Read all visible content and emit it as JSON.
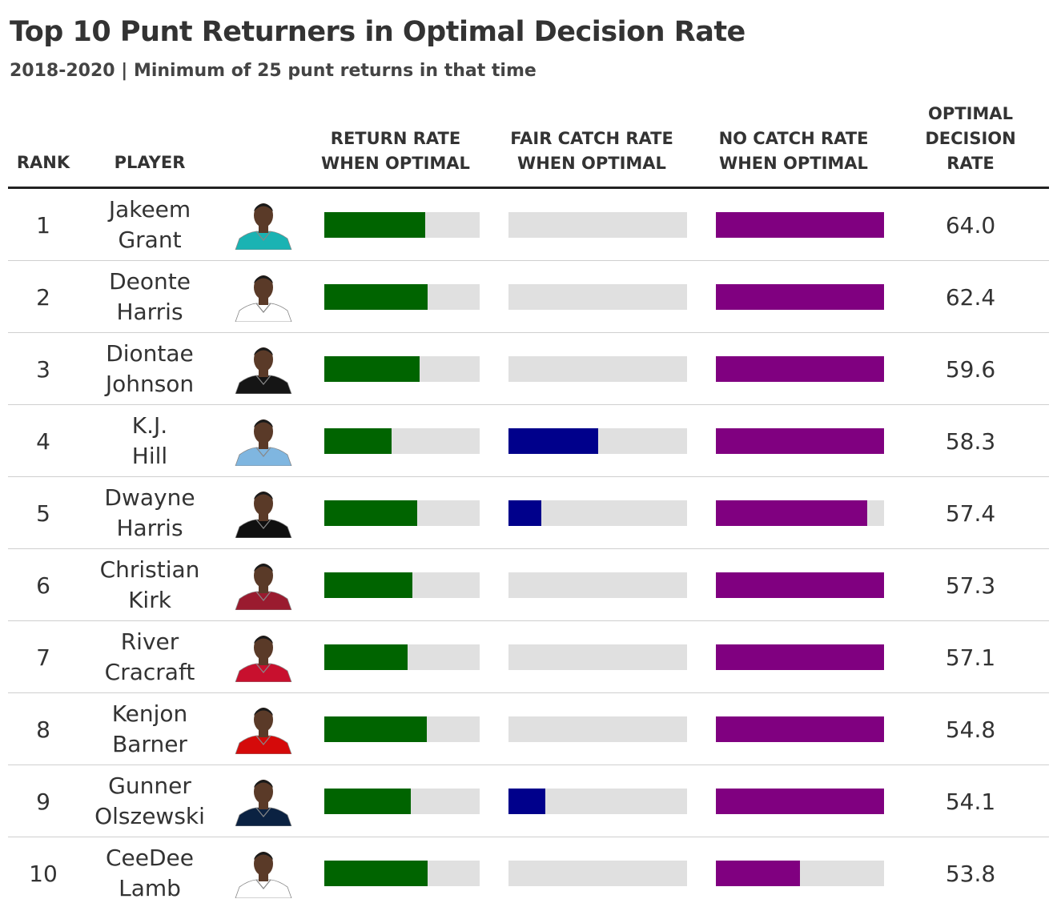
{
  "title": "Top 10 Punt Returners in Optimal Decision Rate",
  "subtitle": "2018-2020 | Minimum of 25 punt returns in that time",
  "headers": {
    "rank": "RANK",
    "player": "PLAYER",
    "return_l1": "RETURN RATE",
    "return_l2": "WHEN OPTIMAL",
    "fair_l1": "FAIR CATCH RATE",
    "fair_l2": "WHEN OPTIMAL",
    "nocatch_l1": "NO CATCH RATE",
    "nocatch_l2": "WHEN OPTIMAL",
    "odr_l1": "OPTIMAL",
    "odr_l2": "DECISION",
    "odr_l3": "RATE"
  },
  "colors": {
    "return_rate": "#006400",
    "fair_catch_rate": "#00008b",
    "no_catch_rate": "#800080",
    "track": "#e0e0e0",
    "header_rule": "#222222",
    "row_separator": "#cfcfcf"
  },
  "chart_data": {
    "type": "table",
    "title": "Top 10 Punt Returners in Optimal Decision Rate",
    "subtitle": "2018-2020 | Minimum of 25 punt returns in that time",
    "columns": [
      "RANK",
      "PLAYER",
      "RETURN RATE WHEN OPTIMAL",
      "FAIR CATCH RATE WHEN OPTIMAL",
      "NO CATCH RATE WHEN OPTIMAL",
      "OPTIMAL DECISION RATE"
    ],
    "bar_scale": [
      0,
      100
    ],
    "rows": [
      {
        "rank": "1",
        "first": "Jakeem",
        "last": "Grant",
        "jersey": "#1ab3b3",
        "return_rate": 65,
        "fair_catch_rate": 0,
        "no_catch_rate": 100,
        "optimal_decision_rate": "64.0"
      },
      {
        "rank": "2",
        "first": "Deonte",
        "last": "Harris",
        "jersey": "#ffffff",
        "return_rate": 66.5,
        "fair_catch_rate": 0,
        "no_catch_rate": 100,
        "optimal_decision_rate": "62.4"
      },
      {
        "rank": "3",
        "first": "Diontae",
        "last": "Johnson",
        "jersey": "#151515",
        "return_rate": 61.5,
        "fair_catch_rate": 0,
        "no_catch_rate": 100,
        "optimal_decision_rate": "59.6"
      },
      {
        "rank": "4",
        "first": "K.J.",
        "last": "Hill",
        "jersey": "#7fb6e0",
        "return_rate": 43.5,
        "fair_catch_rate": 50,
        "no_catch_rate": 100,
        "optimal_decision_rate": "58.3"
      },
      {
        "rank": "5",
        "first": "Dwayne",
        "last": "Harris",
        "jersey": "#101010",
        "return_rate": 60,
        "fair_catch_rate": 18.5,
        "no_catch_rate": 90,
        "optimal_decision_rate": "57.4"
      },
      {
        "rank": "6",
        "first": "Christian",
        "last": "Kirk",
        "jersey": "#9a1b2f",
        "return_rate": 56.5,
        "fair_catch_rate": 0,
        "no_catch_rate": 100,
        "optimal_decision_rate": "57.3"
      },
      {
        "rank": "7",
        "first": "River",
        "last": "Cracraft",
        "jersey": "#c8102e",
        "return_rate": 53.5,
        "fair_catch_rate": 0,
        "no_catch_rate": 100,
        "optimal_decision_rate": "57.1"
      },
      {
        "rank": "8",
        "first": "Kenjon",
        "last": "Barner",
        "jersey": "#d50a0a",
        "return_rate": 66,
        "fair_catch_rate": 0,
        "no_catch_rate": 100,
        "optimal_decision_rate": "54.8"
      },
      {
        "rank": "9",
        "first": "Gunner",
        "last": "Olszewski",
        "jersey": "#0b2242",
        "return_rate": 55.5,
        "fair_catch_rate": 20.5,
        "no_catch_rate": 100,
        "optimal_decision_rate": "54.1"
      },
      {
        "rank": "10",
        "first": "CeeDee",
        "last": "Lamb",
        "jersey": "#ffffff",
        "return_rate": 66.5,
        "fair_catch_rate": 0,
        "no_catch_rate": 50,
        "optimal_decision_rate": "53.8"
      }
    ]
  }
}
